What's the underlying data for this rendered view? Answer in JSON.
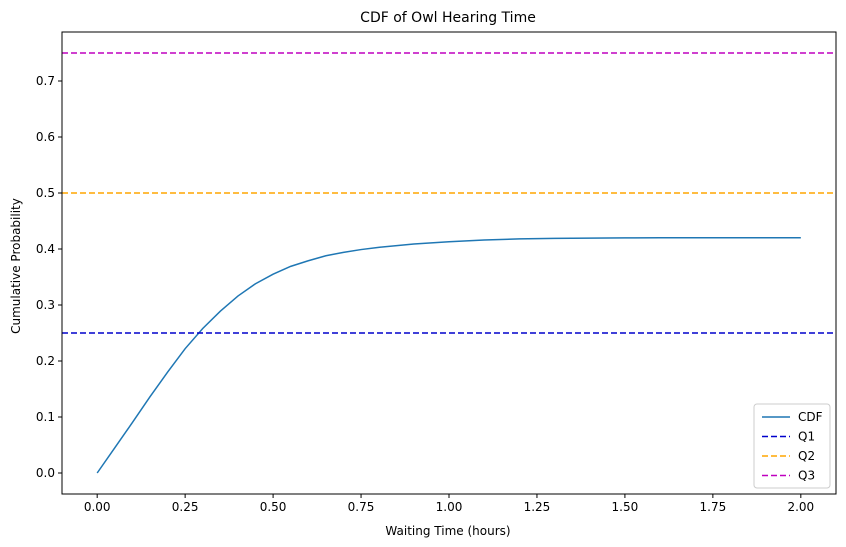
{
  "chart_data": {
    "type": "line",
    "title": "CDF of Owl Hearing Time",
    "xlabel": "Waiting Time (hours)",
    "ylabel": "Cumulative Probability",
    "xlim": [
      -0.1,
      2.1
    ],
    "ylim": [
      -0.0375,
      0.7875
    ],
    "x_ticks": [
      0.0,
      0.25,
      0.5,
      0.75,
      1.0,
      1.25,
      1.5,
      1.75,
      2.0
    ],
    "x_tick_labels": [
      "0.00",
      "0.25",
      "0.50",
      "0.75",
      "1.00",
      "1.25",
      "1.50",
      "1.75",
      "2.00"
    ],
    "y_ticks": [
      0.0,
      0.1,
      0.2,
      0.3,
      0.4,
      0.5,
      0.6,
      0.7
    ],
    "y_tick_labels": [
      "0.0",
      "0.1",
      "0.2",
      "0.3",
      "0.4",
      "0.5",
      "0.6",
      "0.7"
    ],
    "grid": false,
    "legend_position": "bottom-right",
    "series": [
      {
        "name": "CDF",
        "color": "#1f77b4",
        "style": "solid",
        "x": [
          0.0,
          0.05,
          0.1,
          0.15,
          0.2,
          0.25,
          0.3,
          0.35,
          0.4,
          0.45,
          0.5,
          0.55,
          0.6,
          0.65,
          0.7,
          0.75,
          0.8,
          0.9,
          1.0,
          1.1,
          1.2,
          1.3,
          1.4,
          1.5,
          1.6,
          1.7,
          1.8,
          1.9,
          2.0
        ],
        "y": [
          0.0,
          0.045,
          0.09,
          0.136,
          0.18,
          0.222,
          0.258,
          0.289,
          0.316,
          0.338,
          0.355,
          0.369,
          0.379,
          0.388,
          0.394,
          0.399,
          0.403,
          0.409,
          0.413,
          0.416,
          0.418,
          0.419,
          0.4195,
          0.4198,
          0.42,
          0.42,
          0.42,
          0.42,
          0.42
        ]
      },
      {
        "name": "Q1",
        "color": "#0000cc",
        "style": "dashed",
        "hline": 0.25
      },
      {
        "name": "Q2",
        "color": "#ffa500",
        "style": "dashed",
        "hline": 0.5
      },
      {
        "name": "Q3",
        "color": "#bf00bf",
        "style": "dashed",
        "hline": 0.75
      }
    ]
  }
}
